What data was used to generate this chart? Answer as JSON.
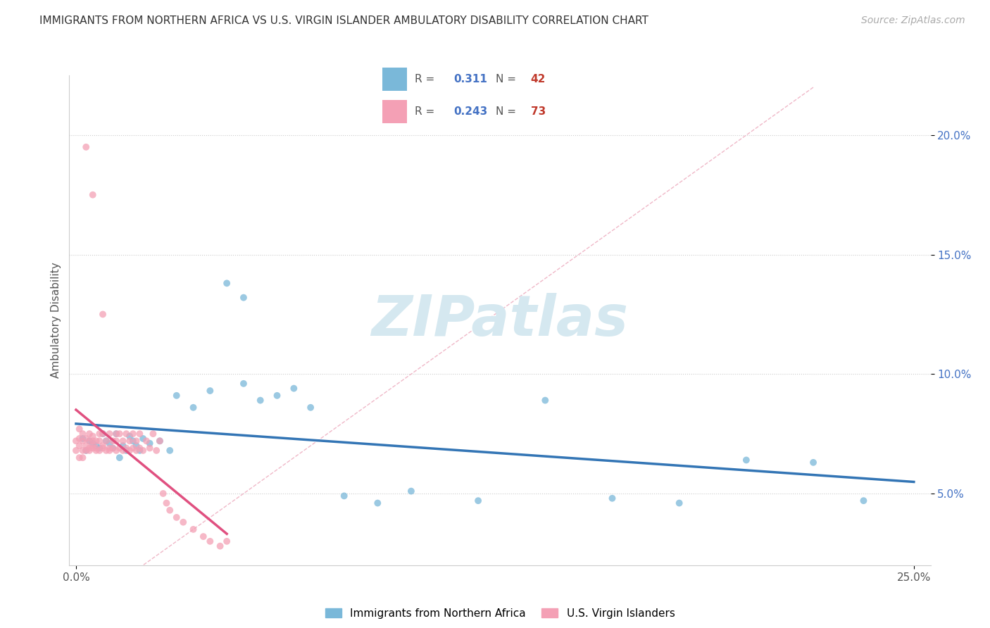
{
  "title": "IMMIGRANTS FROM NORTHERN AFRICA VS U.S. VIRGIN ISLANDER AMBULATORY DISABILITY CORRELATION CHART",
  "source": "Source: ZipAtlas.com",
  "ylabel": "Ambulatory Disability",
  "xlim": [
    -0.002,
    0.255
  ],
  "ylim": [
    0.02,
    0.225
  ],
  "xticks": [
    0.0,
    0.25
  ],
  "xtick_labels": [
    "0.0%",
    "25.0%"
  ],
  "yticks": [
    0.05,
    0.1,
    0.15,
    0.2
  ],
  "ytick_labels": [
    "5.0%",
    "10.0%",
    "15.0%",
    "20.0%"
  ],
  "legend_blue_r": "0.311",
  "legend_blue_n": "42",
  "legend_pink_r": "0.243",
  "legend_pink_n": "73",
  "blue_color": "#7ab8d9",
  "pink_color": "#f4a0b5",
  "blue_line_color": "#3375b5",
  "pink_line_color": "#e05080",
  "diagonal_color": "#f0b0c0",
  "watermark_color": "#d8e8f0",
  "blue_scatter_x": [
    0.002,
    0.003,
    0.004,
    0.005,
    0.006,
    0.007,
    0.008,
    0.009,
    0.01,
    0.011,
    0.012,
    0.013,
    0.014,
    0.015,
    0.016,
    0.017,
    0.018,
    0.019,
    0.02,
    0.022,
    0.025,
    0.028,
    0.03,
    0.035,
    0.04,
    0.045,
    0.05,
    0.055,
    0.06,
    0.07,
    0.08,
    0.09,
    0.1,
    0.12,
    0.14,
    0.16,
    0.18,
    0.2,
    0.22,
    0.235,
    0.05,
    0.065
  ],
  "blue_scatter_y": [
    0.073,
    0.068,
    0.072,
    0.071,
    0.07,
    0.069,
    0.075,
    0.072,
    0.071,
    0.069,
    0.075,
    0.065,
    0.07,
    0.068,
    0.074,
    0.072,
    0.07,
    0.068,
    0.073,
    0.071,
    0.072,
    0.068,
    0.091,
    0.086,
    0.093,
    0.138,
    0.096,
    0.089,
    0.091,
    0.086,
    0.049,
    0.046,
    0.051,
    0.047,
    0.089,
    0.048,
    0.046,
    0.064,
    0.063,
    0.047,
    0.132,
    0.094
  ],
  "pink_scatter_x": [
    0.0,
    0.0,
    0.001,
    0.001,
    0.001,
    0.001,
    0.002,
    0.002,
    0.002,
    0.002,
    0.003,
    0.003,
    0.003,
    0.004,
    0.004,
    0.004,
    0.004,
    0.005,
    0.005,
    0.005,
    0.005,
    0.006,
    0.006,
    0.006,
    0.007,
    0.007,
    0.007,
    0.008,
    0.008,
    0.008,
    0.009,
    0.009,
    0.01,
    0.01,
    0.01,
    0.011,
    0.011,
    0.012,
    0.012,
    0.012,
    0.013,
    0.013,
    0.014,
    0.014,
    0.015,
    0.015,
    0.016,
    0.016,
    0.017,
    0.017,
    0.018,
    0.018,
    0.019,
    0.019,
    0.02,
    0.021,
    0.022,
    0.023,
    0.024,
    0.025,
    0.026,
    0.027,
    0.028,
    0.03,
    0.032,
    0.035,
    0.038,
    0.04,
    0.043,
    0.045,
    0.003,
    0.005,
    0.008
  ],
  "pink_scatter_y": [
    0.068,
    0.072,
    0.065,
    0.07,
    0.073,
    0.077,
    0.068,
    0.072,
    0.075,
    0.065,
    0.07,
    0.073,
    0.068,
    0.072,
    0.069,
    0.075,
    0.068,
    0.072,
    0.069,
    0.074,
    0.07,
    0.068,
    0.072,
    0.069,
    0.075,
    0.068,
    0.072,
    0.069,
    0.075,
    0.07,
    0.068,
    0.072,
    0.069,
    0.075,
    0.068,
    0.072,
    0.069,
    0.075,
    0.068,
    0.072,
    0.069,
    0.075,
    0.068,
    0.072,
    0.069,
    0.075,
    0.068,
    0.072,
    0.069,
    0.075,
    0.068,
    0.072,
    0.069,
    0.075,
    0.068,
    0.072,
    0.069,
    0.075,
    0.068,
    0.072,
    0.05,
    0.046,
    0.043,
    0.04,
    0.038,
    0.035,
    0.032,
    0.03,
    0.028,
    0.03,
    0.195,
    0.175,
    0.125
  ]
}
